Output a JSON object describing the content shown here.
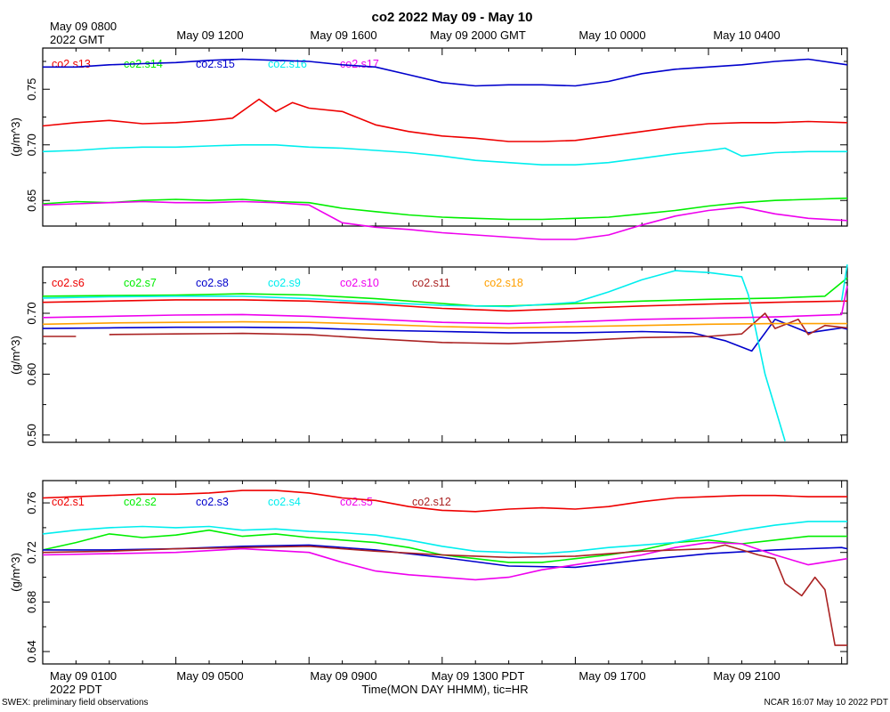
{
  "chart_data": {
    "type": "line",
    "title": "co2 2022 May 09 - May 10",
    "top_axis": {
      "first_label_line1": "May 09 0800",
      "first_label_line2": "2022 GMT",
      "labels": [
        "May 09 1200",
        "May 09 1600",
        "May 09 2000 GMT",
        "May 10 0000",
        "May 10 0400"
      ]
    },
    "bottom_axis": {
      "first_label": "May 09 0100",
      "labels": [
        "May 09 0500",
        "May 09 0900",
        "May 09 1300 PDT",
        "May 09 1700",
        "May 09 2100"
      ],
      "tz_label": "2022 PDT",
      "xlabel": "Time(MON DAY HHMM), tic=HR"
    },
    "x_hours": {
      "start": 0,
      "end": 24.17,
      "major_every": 4,
      "minor_every": 1
    },
    "footer_left": "SWEX: preliminary field observations",
    "footer_right": "NCAR 16:07 May 10 2022 PDT",
    "panels": [
      {
        "ylabel": "(g/m^3)",
        "ylim": [
          0.627,
          0.787
        ],
        "yticks": [
          0.65,
          0.7,
          0.75
        ],
        "ytick_labels": [
          "0.65",
          "0.70",
          "0.75"
        ],
        "series": [
          {
            "name": "co2.s13",
            "color": "#ee0000",
            "x": [
              0,
              1,
              2,
              3,
              4,
              5,
              5.7,
              6.5,
              7,
              7.5,
              8,
              9,
              10,
              11,
              12,
              13,
              14,
              15,
              16,
              17,
              18,
              19,
              20,
              21,
              22,
              23,
              24.17
            ],
            "values": [
              0.717,
              0.72,
              0.722,
              0.719,
              0.72,
              0.722,
              0.724,
              0.741,
              0.73,
              0.738,
              0.733,
              0.73,
              0.718,
              0.712,
              0.708,
              0.706,
              0.703,
              0.703,
              0.704,
              0.708,
              0.712,
              0.716,
              0.719,
              0.72,
              0.72,
              0.721,
              0.72
            ]
          },
          {
            "name": "co2.s14",
            "color": "#00ee00",
            "x": [
              0,
              1,
              2,
              3,
              4,
              5,
              6,
              7,
              8,
              9,
              10,
              11,
              12,
              13,
              14,
              15,
              16,
              17,
              18,
              19,
              20,
              21,
              22,
              23,
              24.17
            ],
            "values": [
              0.647,
              0.649,
              0.648,
              0.65,
              0.651,
              0.65,
              0.651,
              0.649,
              0.648,
              0.643,
              0.64,
              0.637,
              0.635,
              0.634,
              0.633,
              0.633,
              0.634,
              0.635,
              0.638,
              0.641,
              0.645,
              0.648,
              0.65,
              0.651,
              0.652
            ]
          },
          {
            "name": "co2.s15",
            "color": "#0000cc",
            "x": [
              0,
              1,
              2,
              3,
              4,
              5,
              6,
              7,
              8,
              9,
              10,
              11,
              12,
              13,
              14,
              15,
              16,
              17,
              18,
              19,
              20,
              21,
              22,
              23,
              24.17
            ],
            "values": [
              0.77,
              0.77,
              0.772,
              0.773,
              0.774,
              0.776,
              0.777,
              0.776,
              0.775,
              0.772,
              0.77,
              0.763,
              0.756,
              0.753,
              0.754,
              0.754,
              0.753,
              0.757,
              0.764,
              0.768,
              0.77,
              0.772,
              0.775,
              0.777,
              0.772
            ]
          },
          {
            "name": "co2.s16",
            "color": "#00eeee",
            "x": [
              0,
              1,
              2,
              3,
              4,
              5,
              6,
              7,
              8,
              9,
              10,
              11,
              12,
              13,
              14,
              15,
              16,
              17,
              18,
              19,
              20,
              20.5,
              21,
              22,
              23,
              24.17
            ],
            "values": [
              0.694,
              0.695,
              0.697,
              0.698,
              0.698,
              0.699,
              0.7,
              0.7,
              0.698,
              0.697,
              0.695,
              0.693,
              0.69,
              0.686,
              0.684,
              0.682,
              0.682,
              0.684,
              0.688,
              0.692,
              0.695,
              0.697,
              0.69,
              0.693,
              0.694,
              0.694
            ]
          },
          {
            "name": "co2.s17",
            "color": "#ee00ee",
            "x": [
              0,
              1,
              2,
              3,
              4,
              5,
              6,
              7,
              8,
              9,
              10,
              11,
              12,
              13,
              14,
              15,
              16,
              17,
              18,
              19,
              20,
              21,
              22,
              23,
              24.17
            ],
            "values": [
              0.646,
              0.647,
              0.648,
              0.649,
              0.648,
              0.648,
              0.649,
              0.648,
              0.646,
              0.63,
              0.626,
              0.624,
              0.621,
              0.619,
              0.617,
              0.615,
              0.615,
              0.619,
              0.628,
              0.636,
              0.641,
              0.644,
              0.638,
              0.634,
              0.632
            ]
          }
        ]
      },
      {
        "ylabel": "(g/m^3)",
        "ylim": [
          0.488,
          0.776
        ],
        "yticks": [
          0.5,
          0.6,
          0.7
        ],
        "ytick_labels": [
          "0.50",
          "0.60",
          "0.70"
        ],
        "series": [
          {
            "name": "co2.s6",
            "color": "#ee0000",
            "x": [
              0,
              2,
              4,
              6,
              8,
              10,
              12,
              14,
              16,
              18,
              20,
              22,
              24,
              24.17
            ],
            "values": [
              0.718,
              0.72,
              0.722,
              0.722,
              0.72,
              0.715,
              0.708,
              0.704,
              0.708,
              0.712,
              0.715,
              0.718,
              0.72,
              0.72
            ]
          },
          {
            "name": "co2.s7",
            "color": "#00ee00",
            "x": [
              0,
              2,
              4,
              6,
              8,
              10,
              12,
              13,
              14,
              16,
              18,
              20,
              22,
              23.5,
              24.17
            ],
            "values": [
              0.728,
              0.729,
              0.73,
              0.732,
              0.73,
              0.724,
              0.716,
              0.712,
              0.712,
              0.716,
              0.72,
              0.723,
              0.725,
              0.728,
              0.758
            ]
          },
          {
            "name": "co2.s8",
            "color": "#0000cc",
            "x": [
              0,
              2,
              4,
              6,
              8,
              10,
              12,
              14,
              16,
              18,
              19.5,
              20.5,
              21.3,
              22,
              23,
              24,
              24.17
            ],
            "values": [
              0.675,
              0.676,
              0.677,
              0.677,
              0.676,
              0.672,
              0.67,
              0.668,
              0.668,
              0.67,
              0.668,
              0.655,
              0.638,
              0.69,
              0.668,
              0.676,
              0.674
            ]
          },
          {
            "name": "co2.s9",
            "color": "#00eeee",
            "x": [
              0,
              2,
              4,
              6,
              8,
              10,
              12,
              14,
              16,
              17,
              18,
              19,
              20,
              21,
              21.2,
              21.7,
              22.3,
              23,
              24,
              24.17
            ],
            "values": [
              0.725,
              0.727,
              0.728,
              0.728,
              0.724,
              0.718,
              0.713,
              0.711,
              0.718,
              0.735,
              0.755,
              0.77,
              0.767,
              0.76,
              0.73,
              0.6,
              0.49,
              null,
              0.72,
              0.78
            ]
          },
          {
            "name": "co2.s10",
            "color": "#ee00ee",
            "x": [
              0,
              2,
              4,
              6,
              8,
              10,
              12,
              14,
              16,
              18,
              20,
              22,
              24,
              24.17
            ],
            "values": [
              0.693,
              0.695,
              0.697,
              0.698,
              0.695,
              0.69,
              0.685,
              0.683,
              0.686,
              0.69,
              0.692,
              0.694,
              0.698,
              0.745
            ]
          },
          {
            "name": "co2.s11",
            "color": "#aa2222",
            "x": [
              0,
              1,
              1.6,
              2,
              4,
              6,
              8,
              10,
              12,
              14,
              16,
              18,
              20,
              21,
              21.7,
              22,
              22.7,
              23,
              23.5,
              24.17
            ],
            "values": [
              0.662,
              0.662,
              null,
              0.665,
              0.666,
              0.667,
              0.665,
              0.658,
              0.652,
              0.65,
              0.655,
              0.66,
              0.662,
              0.666,
              0.7,
              0.675,
              0.69,
              0.665,
              0.68,
              0.676
            ]
          },
          {
            "name": "co2.s18",
            "color": "#ffa000",
            "x": [
              0,
              2,
              4,
              6,
              8,
              10,
              12,
              14,
              16,
              18,
              20,
              22,
              24.17
            ],
            "values": [
              0.682,
              0.684,
              0.685,
              0.686,
              0.685,
              0.682,
              0.678,
              0.676,
              0.678,
              0.68,
              0.682,
              0.683,
              0.683
            ]
          }
        ]
      },
      {
        "ylabel": "(g/m^3)",
        "ylim": [
          0.63,
          0.778
        ],
        "yticks": [
          0.64,
          0.68,
          0.72,
          0.76
        ],
        "ytick_labels": [
          "0.64",
          "0.68",
          "0.72",
          "0.76"
        ],
        "series": [
          {
            "name": "co2.s1",
            "color": "#ee0000",
            "x": [
              0,
              1,
              2,
              3,
              4,
              5,
              6,
              7,
              8,
              9,
              10,
              11,
              12,
              13,
              14,
              15,
              16,
              17,
              18,
              19,
              20,
              21,
              22,
              23,
              24.17
            ],
            "values": [
              0.764,
              0.765,
              0.766,
              0.767,
              0.767,
              0.768,
              0.77,
              0.77,
              0.768,
              0.764,
              0.762,
              0.757,
              0.754,
              0.753,
              0.755,
              0.756,
              0.755,
              0.757,
              0.761,
              0.764,
              0.765,
              0.766,
              0.766,
              0.765,
              0.765
            ]
          },
          {
            "name": "co2.s2",
            "color": "#00ee00",
            "x": [
              0,
              1,
              2,
              3,
              4,
              5,
              6,
              7,
              8,
              9,
              10,
              11,
              12,
              13,
              14,
              15,
              16,
              17,
              18,
              19,
              20,
              21,
              22,
              23,
              24.17
            ],
            "values": [
              0.722,
              0.728,
              0.735,
              0.732,
              0.734,
              0.738,
              0.733,
              0.735,
              0.732,
              0.73,
              0.728,
              0.724,
              0.718,
              0.715,
              0.712,
              0.712,
              0.715,
              0.718,
              0.722,
              0.728,
              0.73,
              0.727,
              0.73,
              0.733,
              0.733
            ]
          },
          {
            "name": "co2.s3",
            "color": "#0000cc",
            "x": [
              0,
              2,
              4,
              6,
              8,
              10,
              12,
              14,
              16,
              18,
              20,
              22,
              24,
              24.17
            ],
            "values": [
              0.722,
              0.722,
              0.723,
              0.725,
              0.726,
              0.722,
              0.716,
              0.709,
              0.708,
              0.714,
              0.719,
              0.722,
              0.724,
              0.723
            ]
          },
          {
            "name": "co2.s4",
            "color": "#00eeee",
            "x": [
              0,
              1,
              2,
              3,
              4,
              5,
              6,
              7,
              8,
              9,
              10,
              11,
              12,
              13,
              14,
              15,
              16,
              17,
              18,
              19,
              20,
              21,
              22,
              23,
              24.17
            ],
            "values": [
              0.735,
              0.738,
              0.74,
              0.741,
              0.74,
              0.741,
              0.738,
              0.739,
              0.737,
              0.736,
              0.734,
              0.73,
              0.725,
              0.721,
              0.72,
              0.719,
              0.721,
              0.724,
              0.726,
              0.728,
              0.733,
              0.738,
              0.742,
              0.745,
              0.745
            ]
          },
          {
            "name": "co2.s5",
            "color": "#ee00ee",
            "x": [
              0,
              2,
              4,
              6,
              8,
              9,
              10,
              11,
              12,
              13,
              14,
              15,
              16,
              18,
              19,
              20,
              21,
              22,
              23,
              24.17
            ],
            "values": [
              0.718,
              0.719,
              0.72,
              0.723,
              0.72,
              0.712,
              0.705,
              0.702,
              0.7,
              0.698,
              0.7,
              0.706,
              0.71,
              0.718,
              0.724,
              0.728,
              0.727,
              0.718,
              0.71,
              0.715
            ]
          },
          {
            "name": "co2.s12",
            "color": "#aa2222",
            "x": [
              0,
              2,
              4,
              6,
              8,
              10,
              12,
              14,
              16,
              18,
              19,
              20,
              20.5,
              21,
              21.5,
              22,
              22.3,
              22.8,
              23.2,
              23.5,
              23.8,
              24.17
            ],
            "values": [
              0.72,
              0.721,
              0.723,
              0.724,
              0.725,
              0.721,
              0.718,
              0.716,
              0.717,
              0.721,
              0.722,
              0.723,
              0.726,
              0.722,
              0.718,
              0.715,
              0.695,
              0.685,
              0.7,
              0.69,
              0.645,
              0.645
            ]
          }
        ]
      }
    ]
  }
}
